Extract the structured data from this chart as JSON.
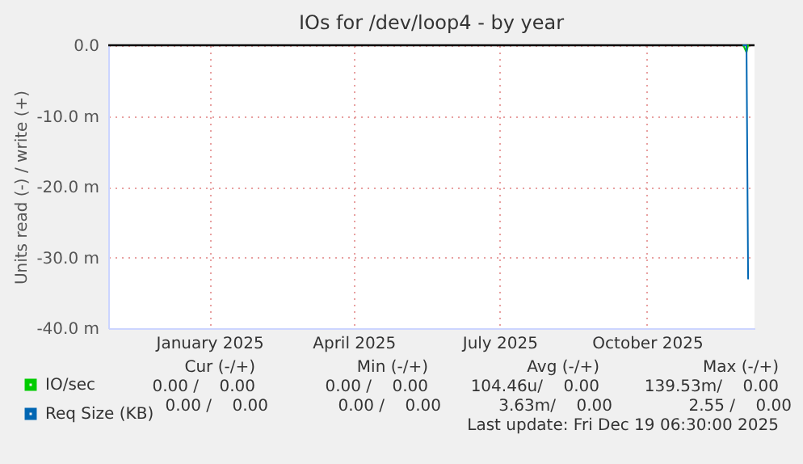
{
  "chart_data": {
    "type": "line",
    "title": "IOs for /dev/loop4 - by year",
    "ylabel": "Units read (-) / write (+)",
    "xlim": [
      "2024-11-14",
      "2025-12-22"
    ],
    "xticks": [
      {
        "value": "2025-01-16",
        "label": "January 2025"
      },
      {
        "value": "2025-04-16",
        "label": "April 2025"
      },
      {
        "value": "2025-07-16",
        "label": "July 2025"
      },
      {
        "value": "2025-10-16",
        "label": "October 2025"
      }
    ],
    "ylim": [
      -40,
      0
    ],
    "yticks": [
      {
        "value": -40,
        "label": "-40.0 m"
      },
      {
        "value": -30,
        "label": "-30.0 m"
      },
      {
        "value": -20,
        "label": "-20.0 m"
      },
      {
        "value": -10,
        "label": "-10.0 m"
      },
      {
        "value": 0,
        "label": "0.0"
      }
    ],
    "grid": true,
    "legend": "bottom left",
    "ref_lines": [
      {
        "axis": "y",
        "value": 0,
        "color": "#000000"
      }
    ],
    "series": [
      {
        "name": "IO/sec",
        "color": "#00cc00",
        "x": [
          "2025-12-15",
          "2025-12-17",
          "2025-12-18"
        ],
        "values": [
          0,
          -1,
          0
        ]
      },
      {
        "name": "Req Size (KB)",
        "color": "#0066b3",
        "x": [
          "2025-12-15",
          "2025-12-17",
          "2025-12-18"
        ],
        "values": [
          0,
          0,
          -33
        ]
      }
    ],
    "annotations": [
      "Cur (-/+)",
      "Min (-/+)",
      "Avg (-/+)",
      "Max (-/+)",
      "0.00 /    0.00",
      "0.00 /    0.00",
      "104.46u/    0.00",
      "139.53m/    0.00",
      "0.00 /    0.00",
      "0.00 /    0.00",
      "3.63m/    0.00",
      "2.55 /    0.00",
      "Last update: Fri Dec 19 06:30:00 2025"
    ]
  }
}
